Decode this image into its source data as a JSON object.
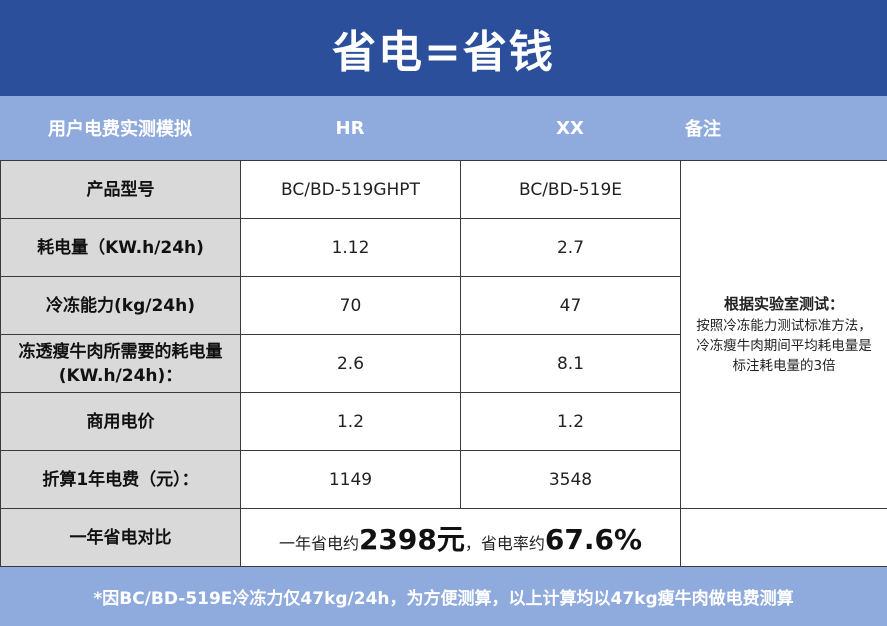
{
  "title": "省电=省钱",
  "header": {
    "col0": "用户电费实测模拟",
    "col1": "HR",
    "col2": "XX",
    "col3": "备注"
  },
  "rows": [
    {
      "label": "产品型号",
      "hr": "BC/BD-519GHPT",
      "xx": "BC/BD-519E"
    },
    {
      "label": "耗电量（KW.h/24h)",
      "hr": "1.12",
      "xx": "2.7"
    },
    {
      "label": "冷冻能力(kg/24h)",
      "hr": "70",
      "xx": "47"
    },
    {
      "label": "冻透瘦牛肉所需要的耗电量",
      "label2": "(KW.h/24h)：",
      "hr": "2.6",
      "xx": "8.1"
    },
    {
      "label": "商用电价",
      "hr": "1.2",
      "xx": "1.2"
    },
    {
      "label": "折算1年电费（元）：",
      "hr": "1149",
      "xx": "3548"
    }
  ],
  "note": {
    "title": "根据实验室测试：",
    "lines": [
      "按照冷冻能力测试标准方法，",
      "冷冻瘦牛肉期间平均耗电量是",
      "标注耗电量的3倍"
    ]
  },
  "compare": {
    "label": "一年省电对比",
    "prefix": "一年省电约",
    "amount": "2398元",
    "mid": "，省电率约",
    "rate": "67.6%"
  },
  "footer": "*因BC/BD-519E冷冻力仅47kg/24h，为方便测算，以上计算均以47kg瘦牛肉做电费测算"
}
